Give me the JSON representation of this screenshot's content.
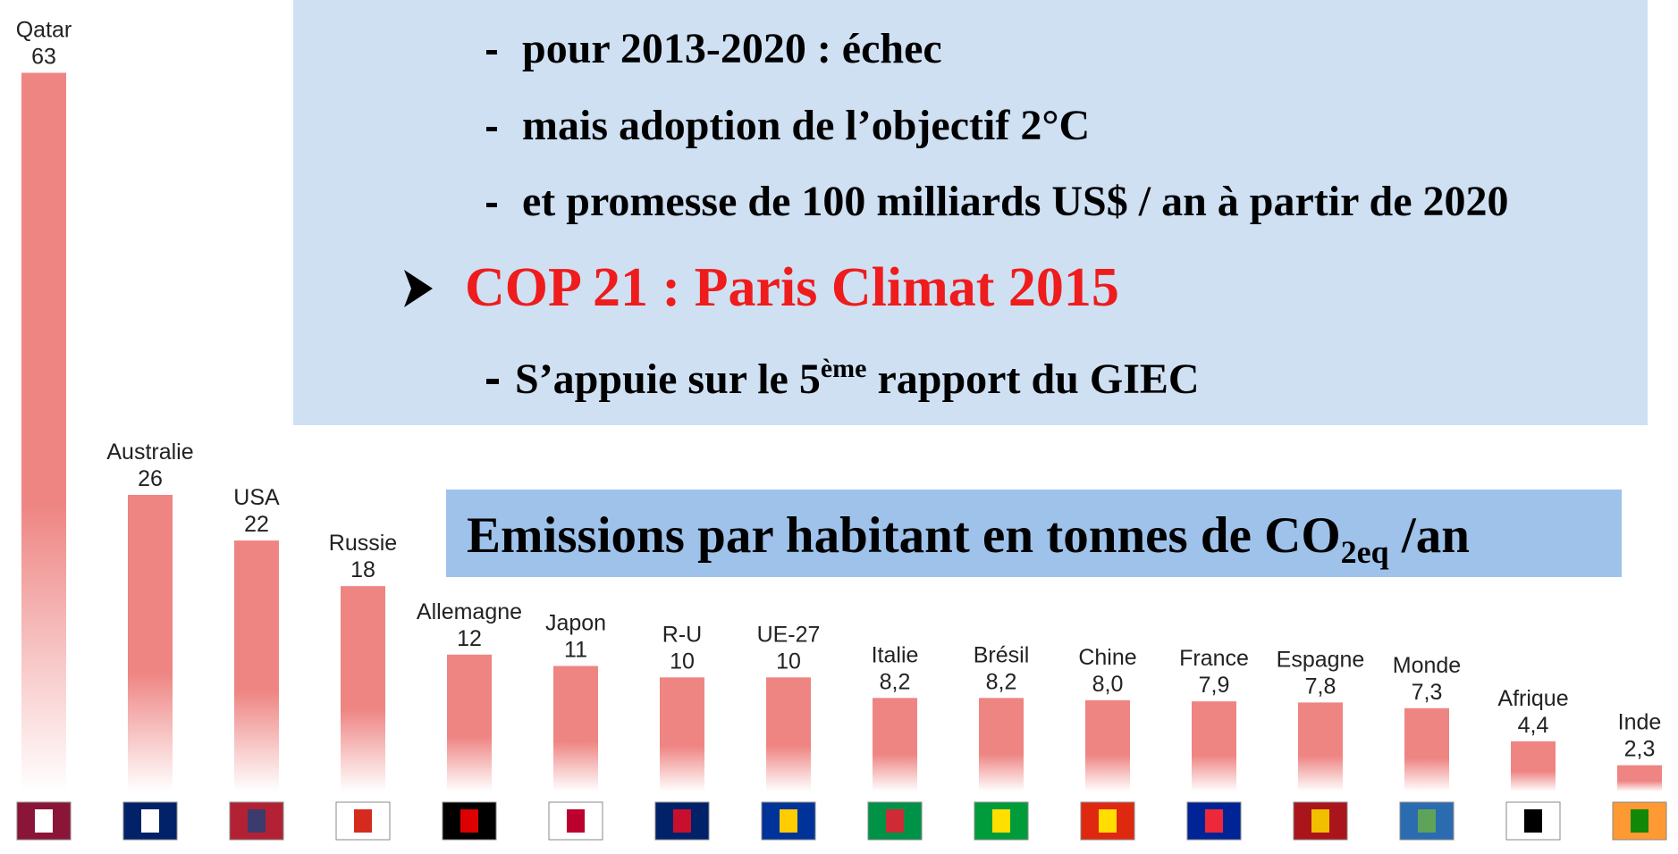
{
  "bullets": [
    "pour 2013-2020 : échec",
    "mais adoption de l’objectif 2°C",
    "et promesse de 100 milliards US$ / an à partir de 2020"
  ],
  "heading": "COP 21 : Paris Climat 2015",
  "note": {
    "before": "S’appuie sur le 5",
    "sup": "ème",
    "after": " rapport du GIEC"
  },
  "chart_data": {
    "type": "bar",
    "title": {
      "main": "Emissions par habitant en tonnes de CO",
      "sub": "2eq",
      "end": " /an"
    },
    "categories": [
      "Qatar",
      "Australie",
      "USA",
      "Russie",
      "Allemagne",
      "Japon",
      "R-U",
      "UE-27",
      "Italie",
      "Brésil",
      "Chine",
      "France",
      "Espagne",
      "Monde",
      "Afrique",
      "Inde"
    ],
    "values": [
      63,
      26,
      22,
      18,
      12,
      11,
      10,
      10,
      8.2,
      8.2,
      8.0,
      7.9,
      7.8,
      7.3,
      4.4,
      2.3
    ],
    "value_labels": [
      "63",
      "26",
      "22",
      "18",
      "12",
      "11",
      "10",
      "10",
      "8,2",
      "8,2",
      "8,0",
      "7,9",
      "7,8",
      "7,3",
      "4,4",
      "2,3"
    ],
    "color": "#ee8583"
  }
}
